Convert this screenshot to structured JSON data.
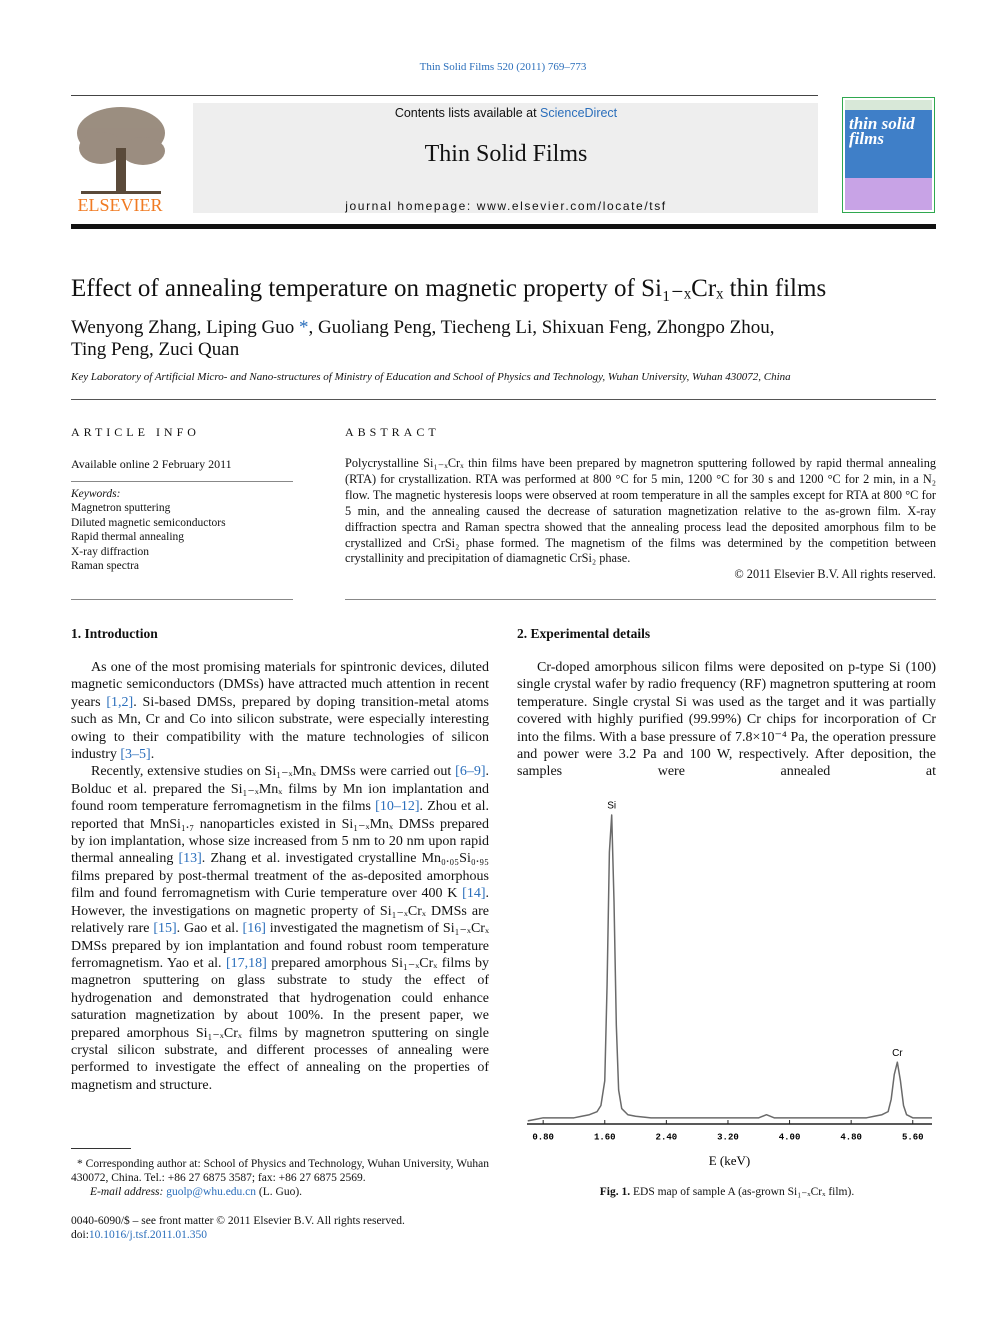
{
  "header": {
    "journal_ref": "Thin Solid Films 520 (2011) 769–773",
    "contents_prefix": "Contents lists available at ",
    "contents_link": "ScienceDirect",
    "journal_title": "Thin Solid Films",
    "homepage": "journal homepage: www.elsevier.com/locate/tsf",
    "publisher": "ELSEVIER",
    "cover_title": "thin solid films"
  },
  "article": {
    "title": "Effect of annealing temperature on magnetic property of Si₁₋ₓCrₓ thin films",
    "authors": [
      "Wenyong Zhang, Liping Guo ",
      "*",
      ", Guoliang Peng, Tiecheng Li, Shixuan Feng, Zhongpo Zhou,"
    ],
    "authors_line2": "Ting Peng, Zuci Quan",
    "affiliation": "Key Laboratory of Artificial Micro- and Nano-structures of Ministry of Education and School of Physics and Technology, Wuhan University, Wuhan 430072, China"
  },
  "article_info": {
    "heading": "ARTICLE INFO",
    "available": "Available online 2 February 2011",
    "keywords_label": "Keywords:",
    "keywords": [
      "Magnetron sputtering",
      "Diluted magnetic semiconductors",
      "Rapid thermal annealing",
      "X-ray diffraction",
      "Raman spectra"
    ]
  },
  "abstract": {
    "heading": "ABSTRACT",
    "text": "Polycrystalline Si₁₋ₓCrₓ thin films have been prepared by magnetron sputtering followed by rapid thermal annealing (RTA) for crystallization. RTA was performed at 800 °C for 5 min, 1200 °C for 30 s and 1200 °C for 2 min, in a N₂ flow. The magnetic hysteresis loops were observed at room temperature in all the samples except for RTA at 800 °C for 5 min, and the annealing caused the decrease of saturation magnetization relative to the as-grown film. X-ray diffraction spectra and Raman spectra showed that the annealing process lead the deposited amorphous film to be crystallized and CrSi₂ phase formed. The magnetism of the films was determined by the competition between crystallinity and precipitation of diamagnetic CrSi₂ phase.",
    "copyright": "© 2011 Elsevier B.V. All rights reserved."
  },
  "sections": [
    {
      "heading": "1. Introduction",
      "paragraphs": [
        [
          "As one of the most promising materials for spintronic devices, diluted magnetic semiconductors (DMSs) have attracted much attention in recent years ",
          "[1,2]",
          ". Si-based DMSs, prepared by doping transition-metal atoms such as Mn, Cr and Co into silicon substrate, were especially interesting owing to their compatibility with the mature technologies of silicon industry ",
          "[3–5]",
          "."
        ],
        [
          "Recently, extensive studies on Si₁₋ₓMnₓ DMSs were carried out ",
          "[6–9]",
          ". Bolduc et al. prepared the Si₁₋ₓMnₓ films by Mn ion implantation and found room temperature ferromagnetism in the films ",
          "[10–12]",
          ". Zhou et al. reported that MnSi₁.₇ nanoparticles existed in Si₁₋ₓMnₓ DMSs prepared by ion implantation, whose size increased from 5 nm to 20 nm upon rapid thermal annealing ",
          "[13]",
          ". Zhang et al. investigated crystalline Mn₀.₀₅Si₀.₉₅ films prepared by post-thermal treatment of the as-deposited amorphous film and found ferromagnetism with Curie temperature over 400 K ",
          "[14]",
          ". However, the investigations on magnetic property of Si₁₋ₓCrₓ DMSs are relatively rare ",
          "[15]",
          ". Gao et al. ",
          "[16]",
          " investigated the magnetism of Si₁₋ₓCrₓ DMSs prepared by ion implantation and found robust room temperature ferromagnetism. Yao et al. ",
          "[17,18]",
          " prepared amorphous Si₁₋ₓCrₓ films by magnetron sputtering on glass substrate to study the effect of hydrogenation and demonstrated that hydrogenation could enhance saturation magnetization by about 100%. In the present paper, we prepared amorphous Si₁₋ₓCrₓ films by magnetron sputtering on single crystal silicon substrate, and different processes of annealing were performed to investigate the effect of annealing on the properties of magnetism and structure."
        ]
      ]
    },
    {
      "heading": "2. Experimental details",
      "paragraphs": [
        [
          "Cr-doped amorphous silicon films were deposited on p-type Si (100) single crystal wafer by radio frequency (RF) magnetron sputtering at room temperature. Single crystal Si was used as the target and it was partially covered with highly purified (99.99%) Cr chips for incorporation of Cr into the films. With a base pressure of 7.8×10⁻⁴ Pa, the operation pressure and power were 3.2 Pa and 100 W, respectively. After deposition, the samples were annealed at"
        ]
      ]
    }
  ],
  "chart_data": {
    "type": "line",
    "xlabel": "E (keV)",
    "x": [
      0.6,
      0.7,
      0.8,
      0.9,
      1.0,
      1.1,
      1.2,
      1.3,
      1.4,
      1.5,
      1.55,
      1.6,
      1.63,
      1.66,
      1.69,
      1.72,
      1.75,
      1.78,
      1.82,
      1.9,
      2.0,
      2.2,
      2.4,
      2.6,
      2.8,
      3.0,
      3.2,
      3.4,
      3.6,
      3.7,
      3.8,
      4.0,
      4.2,
      4.4,
      4.6,
      4.8,
      5.0,
      5.1,
      5.2,
      5.28,
      5.32,
      5.36,
      5.4,
      5.44,
      5.48,
      5.52,
      5.6,
      5.7,
      5.85
    ],
    "values": [
      1,
      1.5,
      2,
      2,
      2,
      2,
      2,
      2.5,
      3,
      4,
      6,
      14,
      45,
      88,
      100,
      72,
      32,
      11,
      5,
      3,
      2.5,
      2,
      2,
      2,
      2,
      2,
      2,
      2,
      2,
      3,
      2,
      2,
      2,
      2,
      2,
      2,
      2,
      2.5,
      3,
      4,
      8,
      16,
      20,
      14,
      6,
      3,
      2,
      2,
      2
    ],
    "color": "#6a6a6a",
    "xlim": [
      0.59,
      5.85
    ],
    "xticks": [
      {
        "value": 0.8,
        "label": "0.80"
      },
      {
        "value": 1.6,
        "label": "1.60"
      },
      {
        "value": 2.4,
        "label": "2.40"
      },
      {
        "value": 3.2,
        "label": "3.20"
      },
      {
        "value": 4.0,
        "label": "4.00"
      },
      {
        "value": 4.8,
        "label": "4.80"
      },
      {
        "value": 5.6,
        "label": "5.60"
      }
    ],
    "ylim": [
      0,
      100
    ],
    "annotations": [
      {
        "text": "Si",
        "x": 1.69,
        "y": 100
      },
      {
        "text": "Cr",
        "x": 5.4,
        "y": 20
      }
    ]
  },
  "figure": {
    "caption_label": "Fig. 1.",
    "caption": "EDS map of sample A (as-grown Si₁₋ₓCrₓ film)."
  },
  "footnotes": {
    "corresponding": "* Corresponding author at: School of Physics and Technology, Wuhan University, Wuhan 430072, China. Tel.: +86 27 6875 3587; fax: +86 27 6875 2569.",
    "email_label": "E-mail address: ",
    "email": "guolp@whu.edu.cn",
    "email_suffix": " (L. Guo).",
    "front_matter": "0040-6090/$ – see front matter © 2011 Elsevier B.V. All rights reserved.",
    "doi_prefix": "doi:",
    "doi": "10.1016/j.tsf.2011.01.350"
  }
}
